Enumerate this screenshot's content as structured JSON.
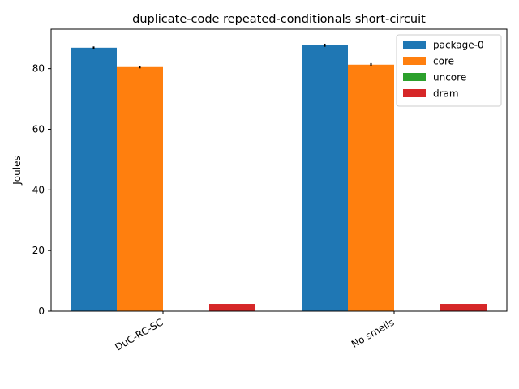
{
  "chart_data": {
    "type": "bar",
    "title": "duplicate-code repeated-conditionals short-circuit",
    "xlabel": "",
    "ylabel": "Joules",
    "categories": [
      "DuC-RC-SC",
      "No smells"
    ],
    "series": [
      {
        "name": "package-0",
        "color": "#1f77b4",
        "values": [
          86.9,
          87.7
        ],
        "errors": [
          0.4,
          0.5
        ]
      },
      {
        "name": "core",
        "color": "#ff7f0e",
        "values": [
          80.5,
          81.3
        ],
        "errors": [
          0.4,
          0.5
        ]
      },
      {
        "name": "uncore",
        "color": "#2ca02c",
        "values": [
          0,
          0
        ],
        "errors": [
          0,
          0
        ]
      },
      {
        "name": "dram",
        "color": "#d62728",
        "values": [
          2.4,
          2.4
        ],
        "errors": [
          0,
          0
        ]
      }
    ],
    "ylim": [
      0,
      93
    ],
    "yticks": [
      0,
      20,
      40,
      60,
      80
    ],
    "grid": false,
    "legend_position": "top-right"
  }
}
